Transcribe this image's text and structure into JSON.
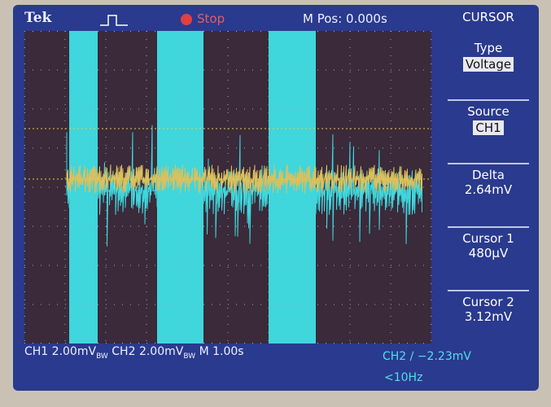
{
  "header": {
    "brand": "Tek",
    "status": "Stop",
    "position": "M Pos: 0.000s"
  },
  "menu": {
    "title": "CURSOR",
    "items": [
      {
        "label": "Type",
        "value": "Voltage"
      },
      {
        "label": "Source",
        "value": "CH1"
      },
      {
        "label": "Delta",
        "value": "2.64mV"
      },
      {
        "label": "Cursor 1",
        "value": "480µV"
      },
      {
        "label": "Cursor 2",
        "value": "3.12mV"
      }
    ]
  },
  "footer": {
    "ch1": "CH1",
    "ch1_scale": "2.00mV",
    "ch1_bw": "BW",
    "ch2": "CH2",
    "ch2_scale": "2.00mV",
    "ch2_bw": "BW",
    "time": "M 1.00s",
    "trigger": "CH2 ∕ −2.23mV",
    "freq": "<10Hz"
  }
}
